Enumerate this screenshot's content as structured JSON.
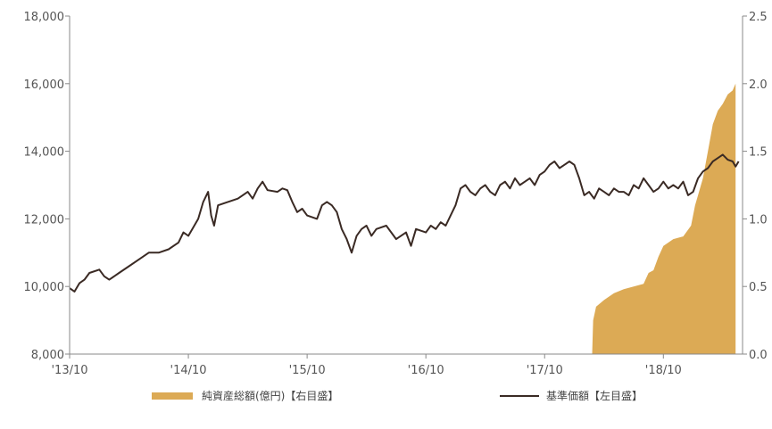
{
  "chart_data": {
    "type": "line",
    "left_axis": {
      "ylim": [
        8000,
        18000
      ],
      "ticks": [
        "8,000",
        "10,000",
        "12,000",
        "14,000",
        "16,000",
        "18,000"
      ],
      "tick_values": [
        8000,
        10000,
        12000,
        14000,
        16000,
        18000
      ]
    },
    "right_axis": {
      "ylim": [
        0.0,
        2.5
      ],
      "ticks": [
        "0.0",
        "0.5",
        "1.0",
        "1.5",
        "2.0",
        "2.5"
      ],
      "tick_values": [
        0.0,
        0.5,
        1.0,
        1.5,
        2.0,
        2.5
      ]
    },
    "x_ticks": [
      {
        "label": "'13/10",
        "t": 0
      },
      {
        "label": "'14/10",
        "t": 12
      },
      {
        "label": "'15/10",
        "t": 24
      },
      {
        "label": "'16/10",
        "t": 36
      },
      {
        "label": "'17/10",
        "t": 48
      },
      {
        "label": "'18/10",
        "t": 60
      }
    ],
    "x_range": [
      0,
      68
    ],
    "series": [
      {
        "name": "純資産総額(億円)【右目盛】",
        "axis": "right",
        "type": "area",
        "color": "#dcaa55",
        "points": [
          [
            0,
            0
          ],
          [
            52.8,
            0
          ],
          [
            52.9,
            0.25
          ],
          [
            53.2,
            0.35
          ],
          [
            54.0,
            0.4
          ],
          [
            55.0,
            0.45
          ],
          [
            56.0,
            0.48
          ],
          [
            57.0,
            0.5
          ],
          [
            58.0,
            0.52
          ],
          [
            58.5,
            0.6
          ],
          [
            59.0,
            0.62
          ],
          [
            59.5,
            0.72
          ],
          [
            60.0,
            0.8
          ],
          [
            61.0,
            0.85
          ],
          [
            62.0,
            0.87
          ],
          [
            62.8,
            0.95
          ],
          [
            63.2,
            1.1
          ],
          [
            63.6,
            1.2
          ],
          [
            64.0,
            1.3
          ],
          [
            64.5,
            1.5
          ],
          [
            65.0,
            1.7
          ],
          [
            65.5,
            1.8
          ],
          [
            66.0,
            1.85
          ],
          [
            66.5,
            1.92
          ],
          [
            67.0,
            1.95
          ],
          [
            67.3,
            2.0
          ]
        ]
      },
      {
        "name": "基準価額【左目盛】",
        "axis": "left",
        "type": "line",
        "color": "#3a2a24",
        "points": [
          [
            0,
            9950
          ],
          [
            0.5,
            9850
          ],
          [
            1,
            10100
          ],
          [
            1.5,
            10200
          ],
          [
            2,
            10400
          ],
          [
            3,
            10500
          ],
          [
            3.5,
            10300
          ],
          [
            4,
            10200
          ],
          [
            5,
            10400
          ],
          [
            6,
            10600
          ],
          [
            7,
            10800
          ],
          [
            8,
            11000
          ],
          [
            9,
            11000
          ],
          [
            10,
            11100
          ],
          [
            11,
            11300
          ],
          [
            11.5,
            11600
          ],
          [
            12,
            11500
          ],
          [
            13,
            12000
          ],
          [
            13.5,
            12500
          ],
          [
            14,
            12800
          ],
          [
            14.3,
            12100
          ],
          [
            14.6,
            11800
          ],
          [
            15,
            12400
          ],
          [
            16,
            12500
          ],
          [
            17,
            12600
          ],
          [
            17.5,
            12700
          ],
          [
            18,
            12800
          ],
          [
            18.5,
            12600
          ],
          [
            19,
            12900
          ],
          [
            19.5,
            13100
          ],
          [
            20,
            12850
          ],
          [
            21,
            12800
          ],
          [
            21.5,
            12900
          ],
          [
            22,
            12850
          ],
          [
            22.5,
            12500
          ],
          [
            23,
            12200
          ],
          [
            23.5,
            12300
          ],
          [
            24,
            12100
          ],
          [
            25,
            12000
          ],
          [
            25.5,
            12400
          ],
          [
            26,
            12500
          ],
          [
            26.5,
            12400
          ],
          [
            27,
            12200
          ],
          [
            27.5,
            11700
          ],
          [
            28,
            11400
          ],
          [
            28.5,
            11000
          ],
          [
            29,
            11500
          ],
          [
            29.5,
            11700
          ],
          [
            30,
            11800
          ],
          [
            30.5,
            11500
          ],
          [
            31,
            11700
          ],
          [
            32,
            11800
          ],
          [
            33,
            11400
          ],
          [
            34,
            11600
          ],
          [
            34.5,
            11200
          ],
          [
            35,
            11700
          ],
          [
            36,
            11600
          ],
          [
            36.5,
            11800
          ],
          [
            37,
            11700
          ],
          [
            37.5,
            11900
          ],
          [
            38,
            11800
          ],
          [
            38.5,
            12100
          ],
          [
            39,
            12400
          ],
          [
            39.5,
            12900
          ],
          [
            40,
            13000
          ],
          [
            40.5,
            12800
          ],
          [
            41,
            12700
          ],
          [
            41.5,
            12900
          ],
          [
            42,
            13000
          ],
          [
            42.5,
            12800
          ],
          [
            43,
            12700
          ],
          [
            43.5,
            13000
          ],
          [
            44,
            13100
          ],
          [
            44.5,
            12900
          ],
          [
            45,
            13200
          ],
          [
            45.5,
            13000
          ],
          [
            46,
            13100
          ],
          [
            46.5,
            13200
          ],
          [
            47,
            13000
          ],
          [
            47.5,
            13300
          ],
          [
            48,
            13400
          ],
          [
            48.5,
            13600
          ],
          [
            49,
            13700
          ],
          [
            49.5,
            13500
          ],
          [
            50,
            13600
          ],
          [
            50.5,
            13700
          ],
          [
            51,
            13600
          ],
          [
            51.5,
            13200
          ],
          [
            52,
            12700
          ],
          [
            52.5,
            12800
          ],
          [
            53,
            12600
          ],
          [
            53.5,
            12900
          ],
          [
            54,
            12800
          ],
          [
            54.5,
            12700
          ],
          [
            55,
            12900
          ],
          [
            55.5,
            12800
          ],
          [
            56,
            12800
          ],
          [
            56.5,
            12700
          ],
          [
            57,
            13000
          ],
          [
            57.5,
            12900
          ],
          [
            58,
            13200
          ],
          [
            58.5,
            13000
          ],
          [
            59,
            12800
          ],
          [
            59.5,
            12900
          ],
          [
            60,
            13100
          ],
          [
            60.5,
            12900
          ],
          [
            61,
            13000
          ],
          [
            61.5,
            12900
          ],
          [
            62,
            13100
          ],
          [
            62.5,
            12700
          ],
          [
            63,
            12800
          ],
          [
            63.5,
            13200
          ],
          [
            64,
            13400
          ],
          [
            64.5,
            13500
          ],
          [
            65,
            13700
          ],
          [
            65.5,
            13800
          ],
          [
            66,
            13900
          ],
          [
            66.5,
            13750
          ],
          [
            67,
            13700
          ],
          [
            67.3,
            13550
          ],
          [
            67.6,
            13700
          ]
        ]
      }
    ],
    "legend_position": "bottom"
  }
}
